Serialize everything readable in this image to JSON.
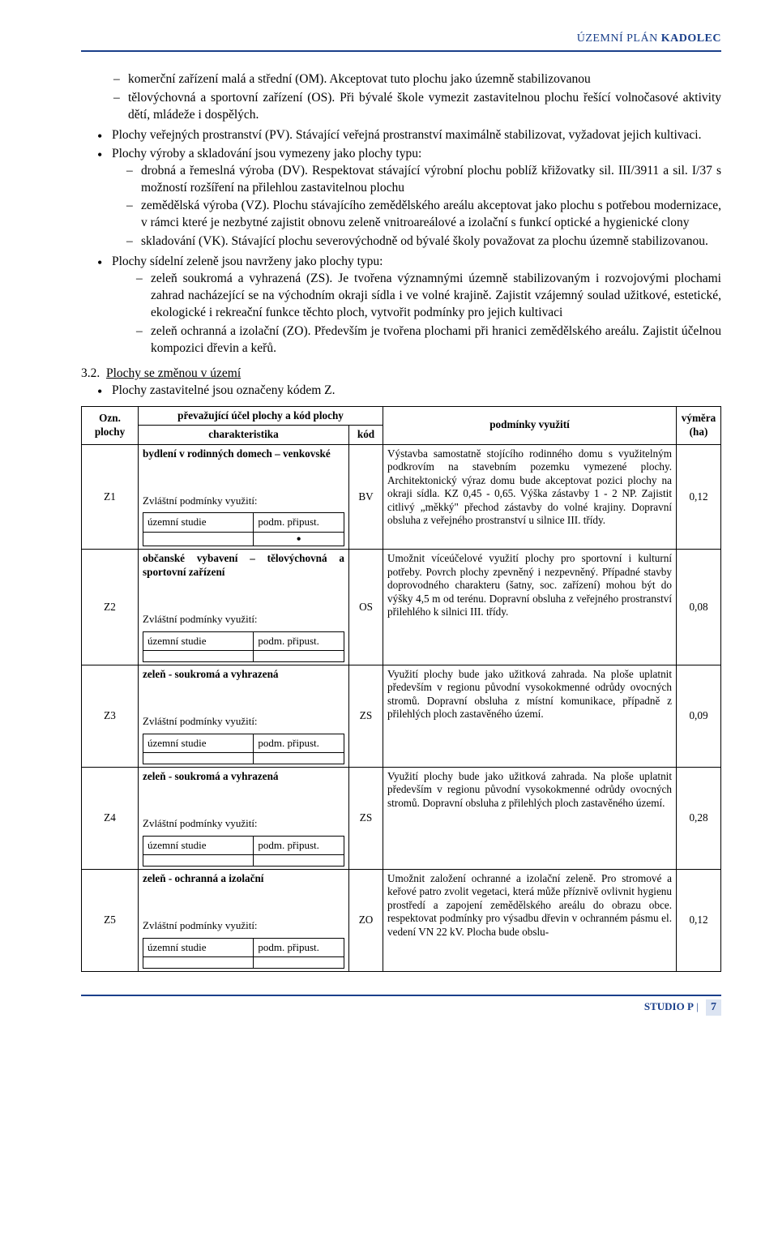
{
  "header": {
    "prefix": "ÚZEMNÍ PLÁN",
    "title": "KADOLEC"
  },
  "bullets": {
    "dash_top": [
      "komerční zařízení malá a střední (OM). Akceptovat tuto plochu jako územně stabilizovanou",
      "tělovýchovná a sportovní zařízení (OS). Při bývalé škole vymezit zastavitelnou plochu řešící volnočasové aktivity dětí, mládeže i dospělých."
    ],
    "dot1_intro": "Plochy veřejných prostranství (PV). Stávající veřejná prostranství maximálně stabilizovat, vyžadovat jejich kultivaci.",
    "dot2_intro": "Plochy výroby a skladování jsou vymezeny jako plochy typu:",
    "dash_mid": [
      "drobná a řemeslná výroba (DV). Respektovat stávající výrobní plochu poblíž křižovatky sil. III/3911 a sil. I/37 s možností rozšíření na přilehlou zastavitelnou plochu",
      "zemědělská výroba (VZ). Plochu stávajícího zemědělského areálu akceptovat jako plochu s potřebou modernizace, v rámci které je nezbytné zajistit obnovu zeleně vnitroareálové a izolační s funkcí optické a hygienické clony",
      "skladování (VK). Stávající plochu severovýchodně od bývalé školy považovat za plochu územně stabilizovanou."
    ],
    "dot3_intro": "Plochy sídelní zeleně jsou navrženy jako plochy typu:",
    "dash_bot": [
      "zeleň soukromá a vyhrazená (ZS). Je tvořena významnými územně stabilizovaným i rozvojovými plochami zahrad nacházející se na východním okraji sídla i ve volné krajině. Zajistit vzájemný soulad užitkové, estetické, ekologické i rekreační funkce těchto ploch, vytvořit podmínky pro jejich kultivaci",
      "zeleň ochranná a izolační (ZO). Především je tvořena plochami při hranici zemědělského areálu. Zajistit účelnou kompozici dřevin a keřů."
    ]
  },
  "section": {
    "num": "3.2.",
    "title": "Plochy se změnou v území",
    "sub": "Plochy zastavitelné jsou označeny kódem Z."
  },
  "table": {
    "head": {
      "ozn": "Ozn. plochy",
      "ucel": "převažující účel plochy a kód plochy",
      "char": "charakteristika",
      "kod": "kód",
      "pod": "podmínky využití",
      "vym": "výměra (ha)"
    },
    "labels": {
      "zvl": "Zvláštní podmínky využití:",
      "studie": "územní studie",
      "pripust": "podm. připust."
    },
    "rows": [
      {
        "ozn": "Z1",
        "char_title": "bydlení v rodinných domech – venkovské",
        "kod": "BV",
        "dot": true,
        "pod": "Výstavba samostatně stojícího rodinného domu s využitelným podkrovím na stavebním pozemku vymezené plochy. Architektonický výraz domu bude akceptovat pozici plochy na okraji sídla. KZ 0,45 - 0,65. Výška zástavby 1 - 2 NP. Zajistit citlivý „měkký\" přechod zástavby do volné krajiny. Dopravní obsluha z veřejného prostranství u silnice III. třídy.",
        "vym": "0,12"
      },
      {
        "ozn": "Z2",
        "char_title": "občanské vybavení – tělovýchovná a sportovní zařízení",
        "kod": "OS",
        "dot": false,
        "pod": "Umožnit víceúčelové využití plochy pro sportovní i kulturní potřeby. Povrch plochy zpevněný i nezpevněný. Případné stavby doprovodného charakteru (šatny, soc. zařízení) mohou být do výšky 4,5 m od terénu. Dopravní obsluha z veřejného prostranství přilehlého k silnici III. třídy.",
        "vym": "0,08"
      },
      {
        "ozn": "Z3",
        "char_title": "zeleň - soukromá a vyhrazená",
        "kod": "ZS",
        "dot": false,
        "pod": "Využití plochy bude jako užitková zahrada. Na ploše uplatnit především v regionu původní vysokokmenné odrůdy ovocných stromů. Dopravní obsluha z místní komunikace, případně z přilehlých ploch zastavěného území.",
        "vym": "0,09"
      },
      {
        "ozn": "Z4",
        "char_title": "zeleň - soukromá a vyhrazená",
        "kod": "ZS",
        "dot": false,
        "pod": "Využití plochy bude jako užitková zahrada. Na ploše uplatnit především v regionu původní vysokokmenné odrůdy ovocných stromů. Dopravní obsluha z přilehlých ploch zastavěného území.",
        "vym": "0,28"
      },
      {
        "ozn": "Z5",
        "char_title": "zeleň - ochranná a izolační",
        "kod": "ZO",
        "dot": false,
        "pod": "Umožnit založení ochranné a izolační zeleně. Pro stromové a keřové patro zvolit vegetaci, která může příznivě ovlivnit hygienu prostředí a zapojení zemědělského areálu do obrazu obce. respektovat podmínky pro výsadbu dřevin v ochranném pásmu el. vedení VN 22 kV. Plocha bude obslu-",
        "vym": "0,12"
      }
    ]
  },
  "footer": {
    "studio": "STUDIO P",
    "sep": "|",
    "page": "7"
  }
}
